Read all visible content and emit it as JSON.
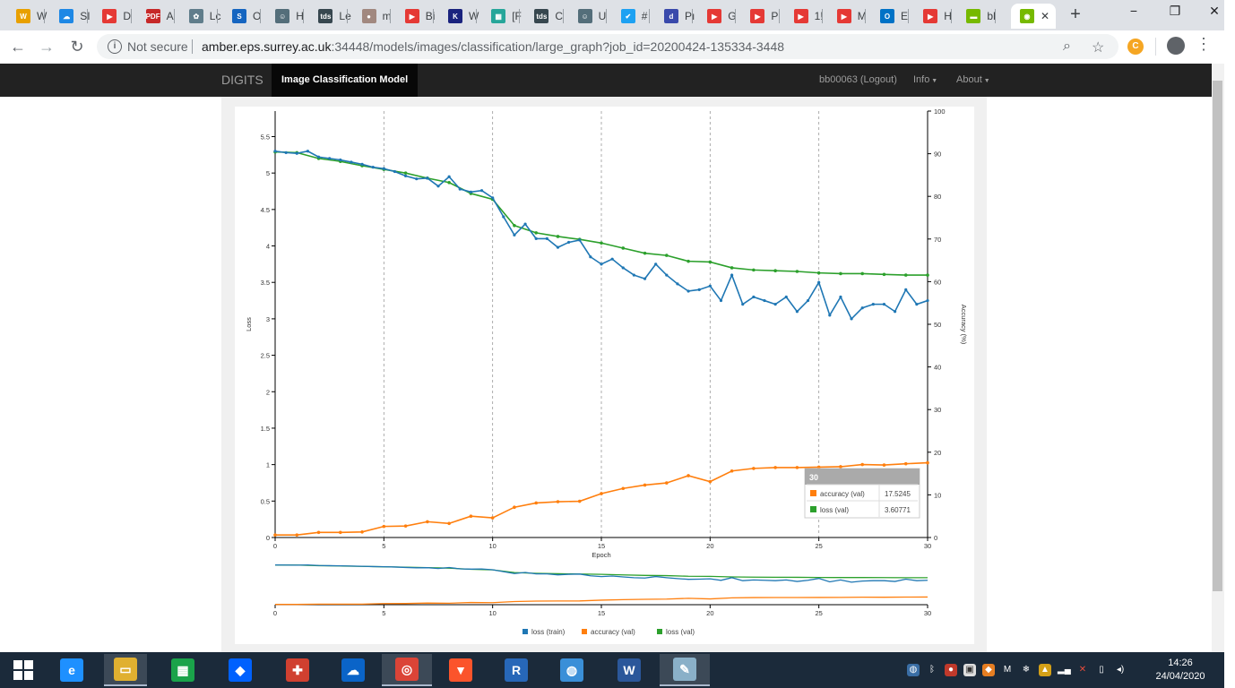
{
  "browser": {
    "tabs": [
      {
        "label": "W",
        "color": "#e8a000",
        "glyph": "W"
      },
      {
        "label": "SI",
        "color": "#1e88e5",
        "glyph": "☁"
      },
      {
        "label": "D",
        "color": "#e53935",
        "glyph": "▶"
      },
      {
        "label": "A",
        "color": "#c62828",
        "glyph": "PDF"
      },
      {
        "label": "Lc",
        "color": "#607d8b",
        "glyph": "✿"
      },
      {
        "label": "O",
        "color": "#1565c0",
        "glyph": "S"
      },
      {
        "label": "H",
        "color": "#546e7a",
        "glyph": "☺"
      },
      {
        "label": "Le",
        "color": "#37474f",
        "glyph": "tds"
      },
      {
        "label": "m",
        "color": "#a1887f",
        "glyph": "●"
      },
      {
        "label": "Bi",
        "color": "#e53935",
        "glyph": "▶"
      },
      {
        "label": "W",
        "color": "#1a237e",
        "glyph": "K"
      },
      {
        "label": "[F",
        "color": "#26a69a",
        "glyph": "▦"
      },
      {
        "label": "C",
        "color": "#37474f",
        "glyph": "tds"
      },
      {
        "label": "U",
        "color": "#546e7a",
        "glyph": "☺"
      },
      {
        "label": "#",
        "color": "#1da1f2",
        "glyph": "✔"
      },
      {
        "label": "Pı",
        "color": "#3949ab",
        "glyph": "d"
      },
      {
        "label": "G",
        "color": "#e53935",
        "glyph": "▶"
      },
      {
        "label": "P",
        "color": "#e53935",
        "glyph": "▶"
      },
      {
        "label": "1!",
        "color": "#e53935",
        "glyph": "▶"
      },
      {
        "label": "M",
        "color": "#e53935",
        "glyph": "▶"
      },
      {
        "label": "E",
        "color": "#0072c6",
        "glyph": "O"
      },
      {
        "label": "H",
        "color": "#e53935",
        "glyph": "▶"
      },
      {
        "label": "bl",
        "color": "#76b900",
        "glyph": "▬"
      }
    ],
    "active_tab": {
      "label": "",
      "color": "#76b900",
      "glyph": "◉"
    },
    "new_tab": "+",
    "security_label": "Not secure",
    "url_host": "amber.eps.surrey.ac.uk",
    "url_rest": ":34448/models/images/classification/large_graph?job_id=20200424-135334-3448"
  },
  "app": {
    "brand": "DIGITS",
    "model_label": "Image Classification Model",
    "user_label": "bb00063 (Logout)",
    "info_label": "Info",
    "about_label": "About"
  },
  "chart_data": {
    "type": "line",
    "xlabel": "Epoch",
    "ylabel": "Loss",
    "y2label": "Accuracy (%)",
    "xlim": [
      0,
      30
    ],
    "ylim": [
      0,
      5.85
    ],
    "y2lim": [
      0,
      100
    ],
    "x_ticks": [
      0,
      5,
      10,
      15,
      20,
      25,
      30
    ],
    "y_ticks": [
      0,
      0.5,
      1,
      1.5,
      2,
      2.5,
      3,
      3.5,
      4,
      4.5,
      5,
      5.5
    ],
    "y2_ticks": [
      0,
      10,
      20,
      30,
      40,
      50,
      60,
      70,
      80,
      90,
      100
    ],
    "legend": [
      "loss (train)",
      "accuracy (val)",
      "loss (val)"
    ],
    "colors": {
      "loss_train": "#1f77b4",
      "accuracy_val": "#ff7f0e",
      "loss_val": "#2ca02c"
    },
    "series": [
      {
        "name": "loss (val)",
        "axis": "y",
        "x": [
          0,
          1,
          2,
          3,
          4,
          5,
          6,
          7,
          8,
          9,
          10,
          11,
          12,
          13,
          14,
          15,
          16,
          17,
          18,
          19,
          20,
          21,
          22,
          23,
          24,
          25,
          26,
          27,
          28,
          29,
          30
        ],
        "values": [
          5.29,
          5.28,
          5.2,
          5.16,
          5.1,
          5.05,
          5.0,
          4.93,
          4.87,
          4.72,
          4.64,
          4.28,
          4.18,
          4.13,
          4.09,
          4.04,
          3.97,
          3.9,
          3.87,
          3.79,
          3.78,
          3.7,
          3.67,
          3.66,
          3.65,
          3.63,
          3.62,
          3.62,
          3.61,
          3.6,
          3.6
        ]
      },
      {
        "name": "accuracy (val)",
        "axis": "y2",
        "x": [
          0,
          1,
          2,
          3,
          4,
          5,
          6,
          7,
          8,
          9,
          10,
          11,
          12,
          13,
          14,
          15,
          16,
          17,
          18,
          19,
          20,
          21,
          22,
          23,
          24,
          25,
          26,
          27,
          28,
          29,
          30
        ],
        "values": [
          0.6,
          0.6,
          1.2,
          1.2,
          1.3,
          2.6,
          2.7,
          3.7,
          3.3,
          5.0,
          4.6,
          7.1,
          8.1,
          8.4,
          8.5,
          10.3,
          11.5,
          12.3,
          12.8,
          14.5,
          13.1,
          15.6,
          16.2,
          16.4,
          16.4,
          16.5,
          16.6,
          17.1,
          17.0,
          17.3,
          17.52
        ]
      },
      {
        "name": "loss (train)",
        "axis": "y",
        "x": [
          0,
          0.5,
          1,
          1.5,
          2,
          2.5,
          3,
          3.5,
          4,
          4.5,
          5,
          5.5,
          6,
          6.5,
          7,
          7.5,
          8,
          8.5,
          9,
          9.5,
          10,
          10.5,
          11,
          11.5,
          12,
          12.5,
          13,
          13.5,
          14,
          14.5,
          15,
          15.5,
          16,
          16.5,
          17,
          17.5,
          18,
          18.5,
          19,
          19.5,
          20,
          20.5,
          21,
          21.5,
          22,
          22.5,
          23,
          23.5,
          24,
          24.5,
          25,
          25.5,
          26,
          26.5,
          27,
          27.5,
          28,
          28.5,
          29,
          29.5,
          30
        ],
        "values": [
          5.3,
          5.28,
          5.27,
          5.3,
          5.22,
          5.2,
          5.18,
          5.15,
          5.12,
          5.08,
          5.06,
          5.02,
          4.96,
          4.92,
          4.93,
          4.82,
          4.95,
          4.78,
          4.74,
          4.76,
          4.66,
          4.4,
          4.15,
          4.3,
          4.1,
          4.1,
          3.98,
          4.05,
          4.08,
          3.85,
          3.75,
          3.82,
          3.7,
          3.6,
          3.55,
          3.75,
          3.6,
          3.48,
          3.38,
          3.4,
          3.45,
          3.25,
          3.6,
          3.2,
          3.3,
          3.25,
          3.2,
          3.3,
          3.1,
          3.25,
          3.5,
          3.05,
          3.3,
          3.0,
          3.15,
          3.2,
          3.2,
          3.1,
          3.4,
          3.2,
          3.25
        ]
      }
    ],
    "tooltip": {
      "epoch": "30",
      "rows": [
        {
          "label": "accuracy (val)",
          "value": "17.5245"
        },
        {
          "label": "loss (val)",
          "value": "3.60771"
        }
      ]
    }
  },
  "taskbar": {
    "apps": [
      {
        "name": "edge",
        "glyph": "e",
        "color": "#1e90ff"
      },
      {
        "name": "explorer",
        "glyph": "▭",
        "color": "#e0b030"
      },
      {
        "name": "store",
        "glyph": "▦",
        "color": "#1aa34a"
      },
      {
        "name": "dropbox",
        "glyph": "◆",
        "color": "#0061fe"
      },
      {
        "name": "paint",
        "glyph": "✚",
        "color": "#d04030"
      },
      {
        "name": "onedrive",
        "glyph": "☁",
        "color": "#0a64c8"
      },
      {
        "name": "chrome",
        "glyph": "◎",
        "color": "#db4437"
      },
      {
        "name": "brave",
        "glyph": "▼",
        "color": "#fb542b"
      },
      {
        "name": "r",
        "glyph": "R",
        "color": "#2767b8"
      },
      {
        "name": "vpn",
        "glyph": "◍",
        "color": "#3a8fd8"
      },
      {
        "name": "word",
        "glyph": "W",
        "color": "#2b579a"
      },
      {
        "name": "notes",
        "glyph": "✎",
        "color": "#8ab0c8"
      }
    ],
    "time": "14:26",
    "date": "24/04/2020"
  }
}
